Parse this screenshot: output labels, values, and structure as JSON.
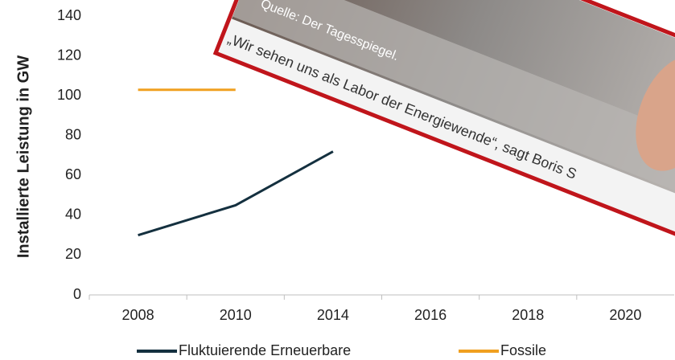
{
  "chart_data": {
    "type": "line",
    "y_label": "Installierte Leistung in GW",
    "categories": [
      "2008",
      "2010",
      "2014",
      "2016",
      "2018",
      "2020"
    ],
    "series": [
      {
        "name": "Fluktuierende Erneuerbare",
        "color": "#14303f",
        "values": [
          30,
          45,
          72,
          null,
          null,
          null
        ]
      },
      {
        "name": "Fossile",
        "color": "#f0a020",
        "values": [
          103,
          103,
          null,
          null,
          null,
          null
        ]
      }
    ],
    "ylim": [
      0,
      140
    ],
    "yticks": [
      0,
      20,
      40,
      60,
      80,
      100,
      120,
      140
    ],
    "grid": false,
    "legend": "bottom"
  },
  "overlay": {
    "caption": "Quelle: Der Tagesspiegel.",
    "quote": "„Wir sehen uns als Labor der Energiewende“, sagt Boris S"
  }
}
